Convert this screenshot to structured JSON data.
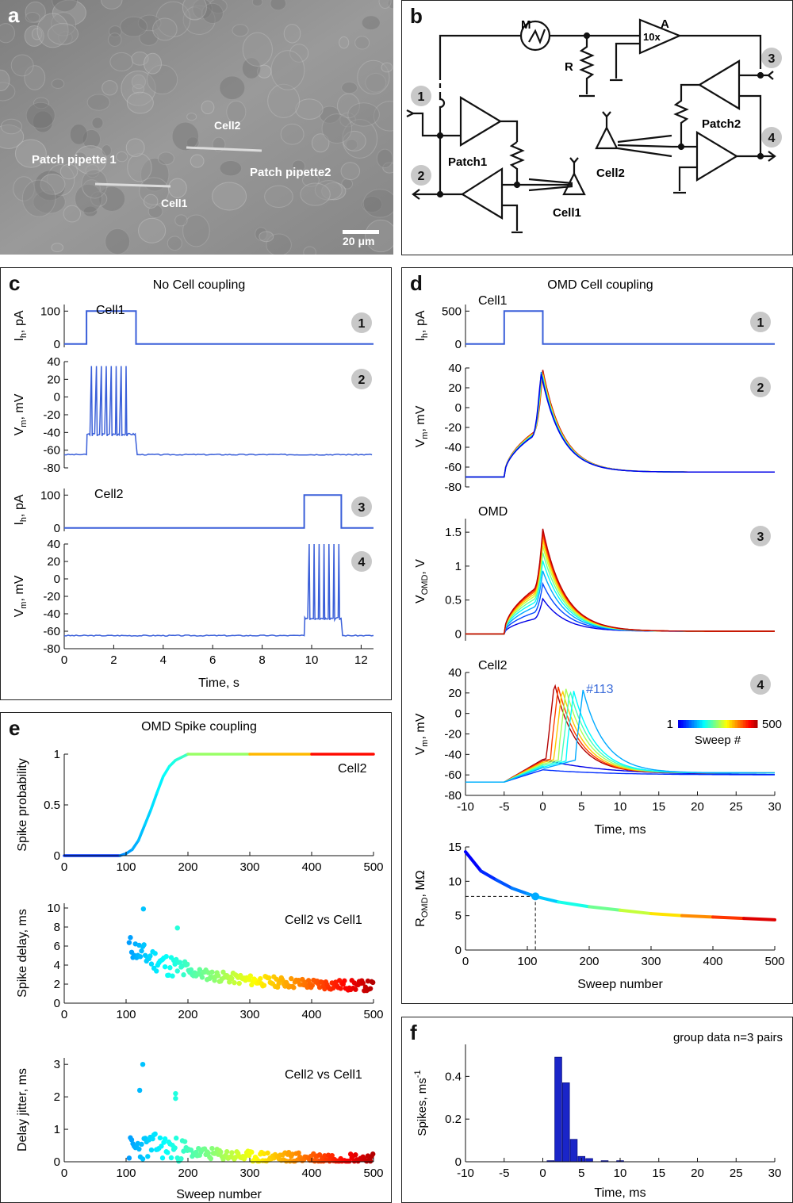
{
  "panel_a": {
    "letter": "a",
    "labels": {
      "pipette1": "Patch pipette 1",
      "pipette2": "Patch pipette2",
      "cell1": "Cell1",
      "cell2": "Cell2",
      "scale": "20 μm"
    }
  },
  "panel_b": {
    "letter": "b",
    "labels": {
      "m": "M",
      "a": "A",
      "gain": "10x",
      "r": "R",
      "patch1": "Patch1",
      "patch2": "Patch2",
      "cell1": "Cell1",
      "cell2": "Cell2"
    },
    "badges": [
      "1",
      "2",
      "3",
      "4"
    ]
  },
  "panel_c": {
    "letter": "c",
    "title": "No Cell coupling",
    "cell1": "Cell1",
    "cell2": "Cell2",
    "badges": [
      "1",
      "2",
      "3",
      "4"
    ],
    "xlabel": "Time, s",
    "xticks": [
      "0",
      "2",
      "4",
      "6",
      "8",
      "10",
      "12"
    ],
    "ih_ticks": [
      "100",
      "0"
    ],
    "vm_ticks": [
      "40",
      "20",
      "0",
      "-20",
      "-40",
      "-60",
      "-80"
    ]
  },
  "panel_d": {
    "letter": "d",
    "title": "OMD Cell coupling",
    "cell1": "Cell1",
    "omd": "OMD",
    "cell2": "Cell2",
    "badges": [
      "1",
      "2",
      "3",
      "4"
    ],
    "ih_ticks": [
      "500",
      "0"
    ],
    "vm_ticks": [
      "40",
      "20",
      "0",
      "-20",
      "-40",
      "-60",
      "-80"
    ],
    "vomd_ticks": [
      "1.5",
      "1",
      "0.5",
      "0"
    ],
    "xticks": [
      "-10",
      "-5",
      "0",
      "5",
      "10",
      "15",
      "20",
      "25",
      "30"
    ],
    "xlabel": "Time, ms",
    "sweep_annot": "#113",
    "colorbar": {
      "min": "1",
      "max": "500",
      "label": "Sweep #"
    },
    "r_ticks": [
      "15",
      "10",
      "5",
      "0"
    ],
    "r_xticks": [
      "0",
      "100",
      "200",
      "300",
      "400",
      "500"
    ],
    "r_xlabel": "Sweep number"
  },
  "panel_e": {
    "letter": "e",
    "title": "OMD Spike coupling",
    "cell2": "Cell2",
    "vs": "Cell2 vs Cell1",
    "ylabel_prob": "Spike probability",
    "prob_ticks": [
      "1",
      "0.5",
      "0"
    ],
    "ylabel_delay": "Spike delay, ms",
    "delay_ticks": [
      "10",
      "8",
      "6",
      "4",
      "2",
      "0"
    ],
    "ylabel_jitter": "Delay jitter, ms",
    "jitter_ticks": [
      "3",
      "2",
      "1",
      "0"
    ],
    "xticks": [
      "0",
      "100",
      "200",
      "300",
      "400",
      "500"
    ],
    "xlabel": "Sweep number"
  },
  "panel_f": {
    "letter": "f",
    "title": "group data n=3 pairs",
    "yticks": [
      "0.4",
      "0.2",
      "0"
    ],
    "xticks": [
      "-10",
      "-5",
      "0",
      "5",
      "10",
      "15",
      "20",
      "25",
      "30"
    ],
    "xlabel": "Time, ms"
  },
  "chart_data": [
    {
      "type": "line",
      "panel": "c1",
      "ylabel": "Ih, pA",
      "series": [
        {
          "x": [
            0,
            0.9,
            0.9,
            2.9,
            2.9,
            12.5
          ],
          "y": [
            0,
            0,
            100,
            100,
            0,
            0
          ]
        }
      ],
      "xlim": [
        0,
        12.5
      ],
      "ylim": [
        -10,
        120
      ]
    },
    {
      "type": "line",
      "panel": "c2",
      "ylabel": "Vm, mV",
      "spike_times_s": [
        1.1,
        1.3,
        1.5,
        1.7,
        1.9,
        2.1,
        2.3,
        2.5
      ],
      "rest_mV": -65,
      "plateau_mV": -42,
      "peak_mV": 35,
      "xlim": [
        0,
        12.5
      ],
      "ylim": [
        -80,
        40
      ]
    },
    {
      "type": "line",
      "panel": "c3",
      "ylabel": "Ih, pA",
      "series": [
        {
          "x": [
            0,
            9.7,
            9.7,
            11.2,
            11.2,
            12.5
          ],
          "y": [
            0,
            0,
            100,
            100,
            0,
            0
          ]
        }
      ],
      "xlim": [
        0,
        12.5
      ],
      "ylim": [
        -10,
        120
      ]
    },
    {
      "type": "line",
      "panel": "c4",
      "ylabel": "Vm, mV",
      "spike_times_s": [
        9.9,
        10.1,
        10.3,
        10.5,
        10.7,
        10.9,
        11.1
      ],
      "rest_mV": -65,
      "plateau_mV": -45,
      "peak_mV": 40,
      "xlim": [
        0,
        12.5
      ],
      "ylim": [
        -80,
        40
      ]
    },
    {
      "type": "line",
      "panel": "d1",
      "ylabel": "Ih, pA",
      "series": [
        {
          "x": [
            -10,
            -5,
            -5,
            0,
            0,
            30
          ],
          "y": [
            0,
            0,
            500,
            500,
            0,
            0
          ]
        }
      ],
      "xlim": [
        -10,
        30
      ],
      "ylim": [
        -50,
        600
      ]
    },
    {
      "type": "line",
      "panel": "d2",
      "ylabel": "Vm, mV",
      "rest_mV": -70,
      "peak_mV": 38,
      "peak_time_ms": 0,
      "end_mV": -65,
      "xlim": [
        -10,
        30
      ],
      "ylim": [
        -80,
        40
      ]
    },
    {
      "type": "line",
      "panel": "d3",
      "ylabel": "VOMD, V",
      "peak_V": [
        0.52,
        0.74,
        0.93,
        1.08,
        1.2,
        1.3,
        1.38,
        1.45,
        1.5,
        1.55
      ],
      "xlim": [
        -10,
        30
      ],
      "ylim": [
        -0.1,
        1.7
      ]
    },
    {
      "type": "line",
      "panel": "d4",
      "ylabel": "Vm, mV",
      "spike_peak_time_ms": [
        1.5,
        2.0,
        2.5,
        3.0,
        3.5,
        4.0,
        5.2
      ],
      "spike_peak_mV": [
        30,
        26,
        24,
        24,
        23,
        22,
        23
      ],
      "subthreshold_mV": [
        -45,
        -55
      ],
      "xlim": [
        -10,
        30
      ],
      "ylim": [
        -80,
        40
      ]
    },
    {
      "type": "line",
      "panel": "d5",
      "ylabel": "ROMD, MΩ",
      "xlabel": "Sweep number",
      "x": [
        0,
        25,
        50,
        75,
        100,
        113,
        150,
        200,
        250,
        300,
        350,
        400,
        450,
        500
      ],
      "y": [
        14.3,
        11.5,
        10.2,
        9.0,
        8.2,
        7.8,
        7.0,
        6.3,
        5.8,
        5.3,
        5.0,
        4.8,
        4.6,
        4.4
      ],
      "marker": {
        "x": 113,
        "y": 7.8
      },
      "xlim": [
        0,
        500
      ],
      "ylim": [
        0,
        15
      ]
    },
    {
      "type": "line",
      "panel": "e1",
      "ylabel": "Spike probability",
      "x": [
        0,
        90,
        100,
        110,
        120,
        130,
        140,
        150,
        160,
        170,
        180,
        190,
        200,
        300,
        400,
        500
      ],
      "y": [
        0,
        0,
        0.02,
        0.06,
        0.15,
        0.3,
        0.45,
        0.62,
        0.78,
        0.88,
        0.94,
        0.97,
        1,
        1,
        1,
        1
      ],
      "xlim": [
        0,
        500
      ],
      "ylim": [
        0,
        1
      ]
    },
    {
      "type": "scatter",
      "panel": "e2",
      "ylabel": "Spike delay, ms",
      "trend_x": [
        105,
        130,
        160,
        200,
        250,
        300,
        350,
        400,
        450,
        500
      ],
      "trend_y": [
        6.0,
        5.0,
        4.2,
        3.3,
        2.8,
        2.4,
        2.2,
        2.0,
        1.9,
        1.8
      ],
      "outliers": [
        {
          "x": 128,
          "y": 9.9
        },
        {
          "x": 183,
          "y": 7.9
        }
      ],
      "xlim": [
        0,
        500
      ],
      "ylim": [
        0,
        10.5
      ]
    },
    {
      "type": "scatter",
      "panel": "e3",
      "ylabel": "Delay jitter, ms",
      "trend_x": [
        105,
        150,
        200,
        300,
        400,
        500
      ],
      "trend_y": [
        0.4,
        0.5,
        0.3,
        0.15,
        0.12,
        0.1
      ],
      "outliers": [
        {
          "x": 127,
          "y": 3.0
        },
        {
          "x": 122,
          "y": 2.2
        },
        {
          "x": 180,
          "y": 2.1
        },
        {
          "x": 180,
          "y": 1.95
        }
      ],
      "xlim": [
        0,
        500
      ],
      "ylim": [
        0,
        3.2
      ]
    },
    {
      "type": "bar",
      "panel": "f",
      "ylabel": "Spikes, ms-1",
      "x": [
        1,
        2,
        3,
        4,
        5,
        6,
        8,
        10
      ],
      "values": [
        0.005,
        0.49,
        0.37,
        0.105,
        0.025,
        0.015,
        0.005,
        0.005
      ],
      "bin_width_ms": 1,
      "xlim": [
        -10,
        30
      ],
      "ylim": [
        0,
        0.55
      ]
    }
  ]
}
